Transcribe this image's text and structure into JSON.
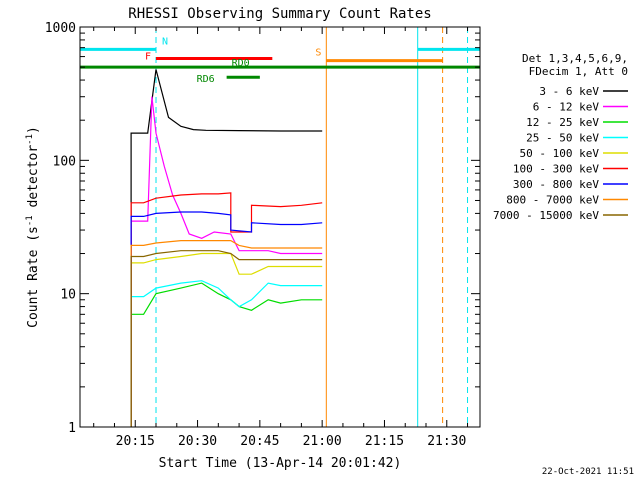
{
  "chart_data": {
    "type": "line",
    "title": "RHESSI Observing Summary Count Rates",
    "xlabel": "Start Time (13-Apr-14 20:01:42)",
    "ylabel_main": "Count Rate (s",
    "ylabel_sup1": "-1",
    "ylabel_mid": " detector",
    "ylabel_sup2": "-1",
    "ylabel_end": ")",
    "yscale": "log",
    "ylim": [
      1,
      1000
    ],
    "xlim_minutes": [
      1.7,
      98.0
    ],
    "x_ticks": [
      {
        "label": "20:15",
        "minute": 15
      },
      {
        "label": "20:30",
        "minute": 30
      },
      {
        "label": "20:45",
        "minute": 45
      },
      {
        "label": "21:00",
        "minute": 60
      },
      {
        "label": "21:15",
        "minute": 75
      },
      {
        "label": "21:30",
        "minute": 90
      }
    ],
    "y_ticks": [
      {
        "label": "1000",
        "value": 1000
      },
      {
        "label": "100",
        "value": 100
      },
      {
        "label": "10",
        "value": 10
      },
      {
        "label": "1",
        "value": 1
      }
    ],
    "legend_header": [
      "Det 1,3,4,5,6,9,",
      "FDecim 1, Att 0"
    ],
    "series": [
      {
        "name": "3 - 6 keV",
        "color": "#000000",
        "x": [
          14,
          14,
          18,
          20,
          23,
          26,
          29,
          32,
          40,
          50,
          57,
          60
        ],
        "y": [
          0.7,
          160,
          160,
          480,
          210,
          180,
          170,
          168,
          167,
          166,
          166,
          166
        ]
      },
      {
        "name": "6 - 12 keV",
        "color": "#ff00ff",
        "x": [
          14,
          14,
          18,
          19,
          20,
          22,
          24,
          26,
          28,
          31,
          34,
          38,
          40,
          43,
          47,
          50,
          55,
          60
        ],
        "y": [
          0.7,
          35,
          35,
          300,
          160,
          90,
          55,
          40,
          28,
          26,
          29,
          28,
          21,
          21,
          21,
          20,
          20,
          20
        ]
      },
      {
        "name": "12 - 25 keV",
        "color": "#00dd00",
        "x": [
          14,
          14,
          17,
          20,
          26,
          31,
          35,
          38,
          40,
          43,
          47,
          50,
          55,
          60
        ],
        "y": [
          0.7,
          7,
          7,
          10,
          11,
          12,
          10,
          9,
          8,
          7.5,
          9,
          8.5,
          9,
          9
        ]
      },
      {
        "name": "25 - 50 keV",
        "color": "#00ffff",
        "x": [
          14,
          14,
          17,
          20,
          26,
          31,
          35,
          38,
          40,
          43,
          47,
          50,
          55,
          60
        ],
        "y": [
          0.7,
          9.5,
          9.5,
          11,
          12,
          12.5,
          11,
          9,
          8,
          9,
          12,
          11.5,
          11.5,
          11.5
        ]
      },
      {
        "name": "50 - 100 keV",
        "color": "#dddd00",
        "x": [
          14,
          14,
          17,
          20,
          26,
          31,
          35,
          38,
          40,
          43,
          47,
          50,
          55,
          60
        ],
        "y": [
          0.7,
          17,
          17,
          18,
          19,
          20,
          20,
          20,
          14,
          14,
          16,
          16,
          16,
          16
        ]
      },
      {
        "name": "100 - 300 keV",
        "color": "#ff0000",
        "x": [
          14,
          14,
          17,
          20,
          26,
          31,
          35,
          38,
          38,
          43,
          43,
          50,
          55,
          60
        ],
        "y": [
          0.7,
          48,
          48,
          52,
          55,
          56,
          56,
          57,
          29,
          29,
          46,
          45,
          46,
          48
        ]
      },
      {
        "name": "300 - 800 keV",
        "color": "#0000ff",
        "x": [
          14,
          14,
          17,
          20,
          26,
          31,
          35,
          38,
          38,
          43,
          43,
          50,
          55,
          60
        ],
        "y": [
          0.7,
          38,
          38,
          40,
          41,
          41,
          40,
          39,
          30,
          29,
          34,
          33,
          33,
          34
        ]
      },
      {
        "name": "800 - 7000 keV",
        "color": "#ff8800",
        "x": [
          14,
          14,
          17,
          20,
          26,
          31,
          35,
          38,
          40,
          43,
          47,
          50,
          55,
          60
        ],
        "y": [
          0.7,
          23,
          23,
          24,
          25,
          25,
          25,
          25,
          23,
          22,
          22,
          22,
          22,
          22
        ]
      },
      {
        "name": "7000 - 15000 keV",
        "color": "#886600",
        "x": [
          14,
          14,
          17,
          20,
          26,
          31,
          35,
          38,
          40,
          43,
          47,
          50,
          55,
          60
        ],
        "y": [
          0.7,
          19,
          19,
          20,
          21,
          21,
          21,
          20,
          18,
          18,
          18,
          18,
          18,
          18
        ]
      }
    ],
    "flags": [
      {
        "label": "N",
        "color": "#00e5ee",
        "x_start": 1.7,
        "x_end": 20,
        "x_start2": 83,
        "x_end2": 98,
        "level": 680
      },
      {
        "label": "S",
        "color": "#ff8800",
        "x_start": 61,
        "x_end": 89,
        "level": 560
      },
      {
        "label": "F",
        "color": "#ff0000",
        "x_start": 20,
        "x_end": 48,
        "level": 580
      },
      {
        "label": "RD0",
        "color": "#008800",
        "x_start": 1.7,
        "x_end": 98,
        "level": 500
      },
      {
        "label": "RD6",
        "color": "#008800",
        "x_start": 37,
        "x_end": 45,
        "level": 420
      }
    ],
    "vlines": [
      {
        "minute": 1.7,
        "color": "#00e5ee",
        "dashed": false
      },
      {
        "minute": 20,
        "color": "#00e5ee",
        "dashed": true
      },
      {
        "minute": 61,
        "color": "#ff8800",
        "dashed": false
      },
      {
        "minute": 83,
        "color": "#00e5ee",
        "dashed": false
      },
      {
        "minute": 89,
        "color": "#ff8800",
        "dashed": true
      },
      {
        "minute": 95,
        "color": "#00e5ee",
        "dashed": true
      }
    ],
    "grid": false,
    "legend_position": "right"
  },
  "footer": {
    "timestamp": "22-Oct-2021 11:51"
  }
}
